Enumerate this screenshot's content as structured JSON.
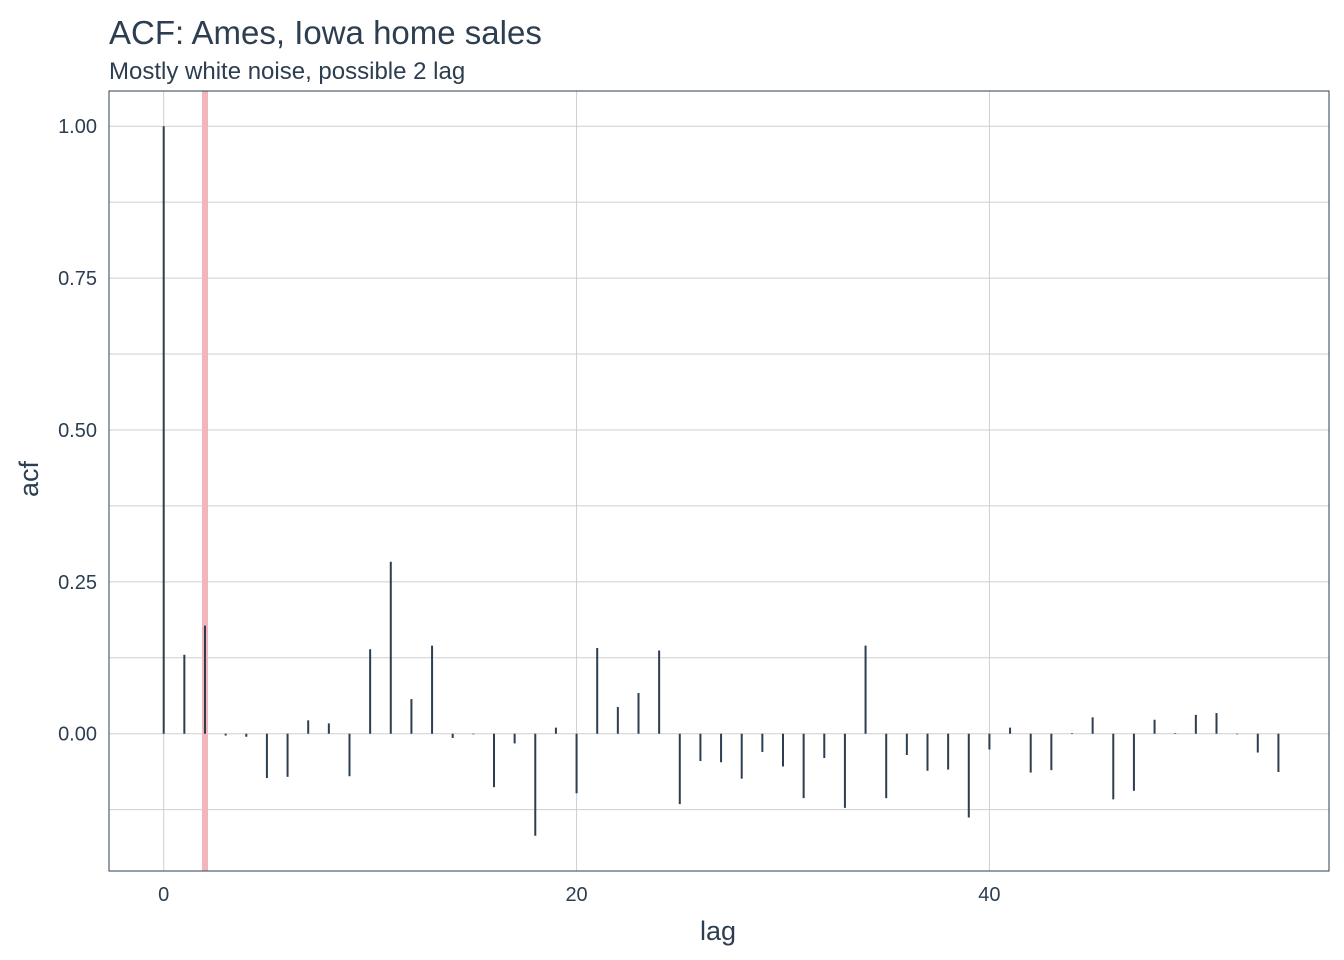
{
  "chart_data": {
    "type": "bar",
    "title": "ACF: Ames, Iowa home sales",
    "subtitle": "Mostly white noise, possible 2 lag",
    "xlabel": "lag",
    "ylabel": "acf",
    "xlim": [
      -2.65,
      56.45
    ],
    "ylim": [
      -0.226,
      1.058
    ],
    "x_ticks": [
      0,
      20,
      40
    ],
    "x_tick_labels": [
      "0",
      "20",
      "40"
    ],
    "y_ticks": [
      0,
      0.25,
      0.5,
      0.75,
      1.0
    ],
    "y_tick_labels": [
      "0.00",
      "0.25",
      "0.50",
      "0.75",
      "1.00"
    ],
    "grid": true,
    "highlight_lag": 2,
    "highlight_color": "#f0b6bb",
    "bar_color": "#2c3e50",
    "x": [
      0,
      1,
      2,
      3,
      4,
      5,
      6,
      7,
      8,
      9,
      10,
      11,
      12,
      13,
      14,
      15,
      16,
      17,
      18,
      19,
      20,
      21,
      22,
      23,
      24,
      25,
      26,
      27,
      28,
      29,
      30,
      31,
      32,
      33,
      34,
      35,
      36,
      37,
      38,
      39,
      40,
      41,
      42,
      43,
      44,
      45,
      46,
      47,
      48,
      49,
      50,
      51,
      52,
      53,
      54
    ],
    "values": [
      1.0,
      0.13,
      0.178,
      -0.003,
      -0.005,
      -0.073,
      -0.071,
      0.022,
      0.017,
      -0.07,
      0.139,
      0.283,
      0.057,
      0.145,
      -0.007,
      -0.001,
      -0.088,
      -0.016,
      -0.168,
      0.01,
      -0.098,
      0.141,
      0.044,
      0.067,
      0.137,
      -0.116,
      -0.045,
      -0.047,
      -0.074,
      -0.03,
      -0.054,
      -0.106,
      -0.04,
      -0.122,
      0.145,
      -0.106,
      -0.035,
      -0.061,
      -0.059,
      -0.138,
      -0.026,
      0.01,
      -0.064,
      -0.06,
      0.001,
      0.027,
      -0.108,
      -0.094,
      0.023,
      0.001,
      0.031,
      0.034,
      -0.001,
      -0.031,
      -0.063
    ]
  }
}
